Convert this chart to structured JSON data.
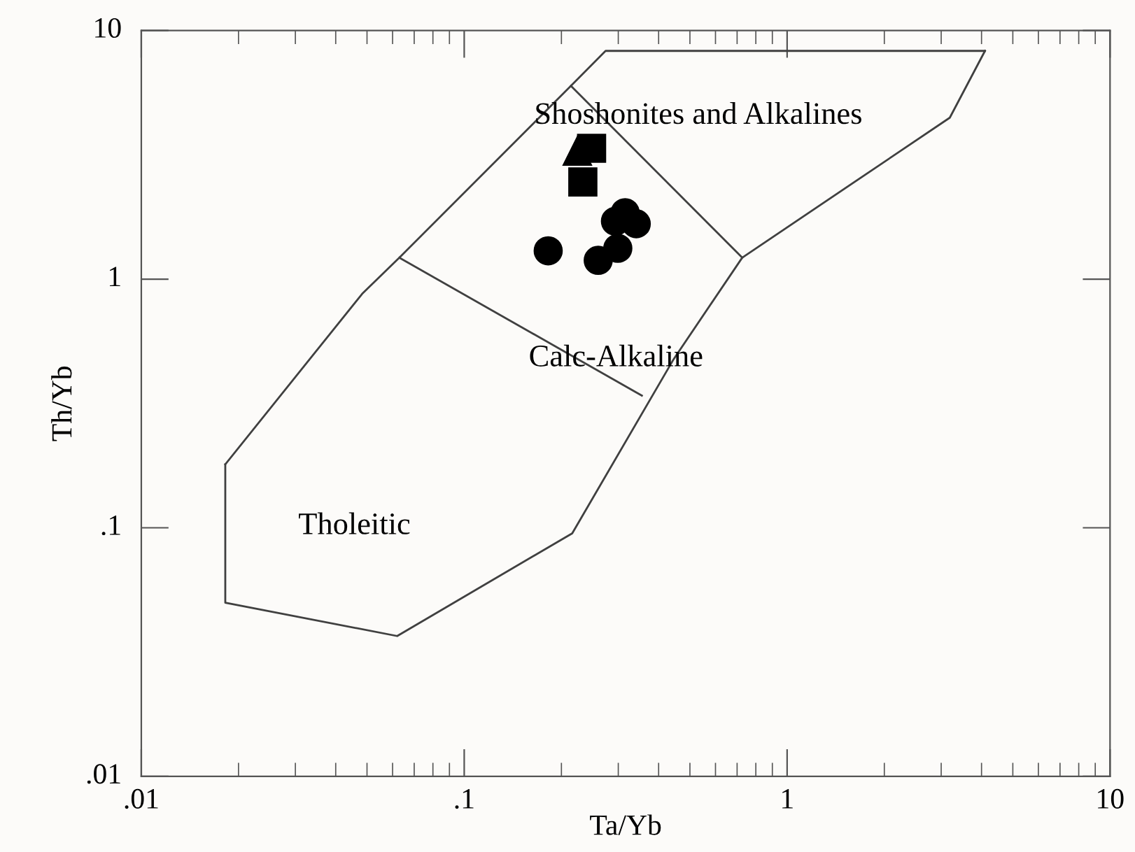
{
  "chart_data": {
    "type": "scatter",
    "xlabel": "Ta/Yb",
    "ylabel": "Th/Yb",
    "log": "xy",
    "xlim": [
      0.01,
      10
    ],
    "ylim": [
      0.01,
      10
    ],
    "xticks": [
      {
        "value": 0.01,
        "label": ".01"
      },
      {
        "value": 0.1,
        "label": ".1"
      },
      1,
      10
    ],
    "yticks": [
      {
        "value": 0.01,
        "label": ".01"
      },
      {
        "value": 0.1,
        "label": ".1"
      },
      1,
      10
    ],
    "grid": false,
    "series": [
      {
        "type": "line",
        "marker": "none",
        "color": "#404040",
        "x": [
          0.0182,
          0.0182,
          0.062,
          0.216,
          0.445,
          0.726,
          3.19,
          4.1
        ],
        "values": [
          0.18,
          0.05,
          0.0367,
          0.095,
          0.476,
          1.22,
          4.46,
          8.28
        ]
      },
      {
        "type": "line",
        "marker": "none",
        "color": "#404040",
        "x": [
          0.0182,
          0.0483,
          0.063,
          0.214,
          0.274,
          4.1
        ],
        "values": [
          0.18,
          0.873,
          1.22,
          5.99,
          8.28,
          8.28
        ]
      },
      {
        "type": "line",
        "marker": "none",
        "color": "#404040",
        "x": [
          0.214,
          0.726
        ],
        "values": [
          5.99,
          1.22
        ]
      },
      {
        "type": "line",
        "marker": "none",
        "color": "#404040",
        "x": [
          0.063,
          0.355
        ],
        "values": [
          1.22,
          0.34
        ]
      },
      {
        "marker": "triangle",
        "color": "#000000",
        "x": [
          0.224
        ],
        "values": [
          3.27
        ]
      },
      {
        "marker": "square",
        "color": "#000000",
        "x": [
          0.248,
          0.233
        ],
        "values": [
          3.36,
          2.46
        ]
      },
      {
        "marker": "circle",
        "color": "#000000",
        "x": [
          0.294,
          0.315,
          0.341,
          0.182,
          0.299,
          0.26
        ],
        "values": [
          1.71,
          1.85,
          1.67,
          1.3,
          1.33,
          1.19
        ]
      }
    ],
    "annotations": [
      "Shoshonites and Alkalines",
      "Calc-Alkaline",
      "Tholeitic"
    ]
  }
}
